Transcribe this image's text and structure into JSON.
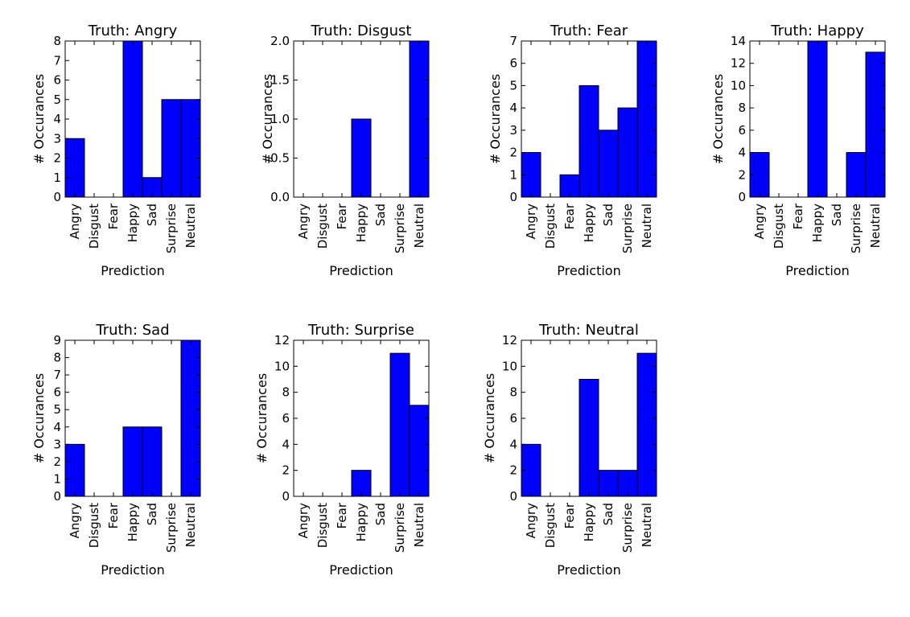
{
  "figure": {
    "bar_color": "#0000ff",
    "edge_color": "#000000",
    "background": "#ffffff"
  },
  "chart_data": [
    {
      "type": "bar",
      "title": "Truth: Angry",
      "xlabel": "Prediction",
      "ylabel": "# Occurances",
      "categories": [
        "Angry",
        "Disgust",
        "Fear",
        "Happy",
        "Sad",
        "Surprise",
        "Neutral"
      ],
      "values": [
        3,
        0,
        0,
        8,
        1,
        5,
        5
      ],
      "ylim": [
        0,
        8
      ],
      "yticks": [
        "0",
        "1",
        "2",
        "3",
        "4",
        "5",
        "6",
        "7",
        "8"
      ]
    },
    {
      "type": "bar",
      "title": "Truth: Disgust",
      "xlabel": "Prediction",
      "ylabel": "# Occurances",
      "categories": [
        "Angry",
        "Disgust",
        "Fear",
        "Happy",
        "Sad",
        "Surprise",
        "Neutral"
      ],
      "values": [
        0,
        0,
        0,
        1,
        0,
        0,
        2
      ],
      "ylim": [
        0,
        2
      ],
      "yticks": [
        "0.0",
        "0.5",
        "1.0",
        "1.5",
        "2.0"
      ]
    },
    {
      "type": "bar",
      "title": "Truth: Fear",
      "xlabel": "Prediction",
      "ylabel": "# Occurances",
      "categories": [
        "Angry",
        "Disgust",
        "Fear",
        "Happy",
        "Sad",
        "Surprise",
        "Neutral"
      ],
      "values": [
        2,
        0,
        1,
        5,
        3,
        4,
        7
      ],
      "ylim": [
        0,
        7
      ],
      "yticks": [
        "0",
        "1",
        "2",
        "3",
        "4",
        "5",
        "6",
        "7"
      ]
    },
    {
      "type": "bar",
      "title": "Truth: Happy",
      "xlabel": "Prediction",
      "ylabel": "# Occurances",
      "categories": [
        "Angry",
        "Disgust",
        "Fear",
        "Happy",
        "Sad",
        "Surprise",
        "Neutral"
      ],
      "values": [
        4,
        0,
        0,
        14,
        0,
        4,
        13
      ],
      "ylim": [
        0,
        14
      ],
      "yticks": [
        "0",
        "2",
        "4",
        "6",
        "8",
        "10",
        "12",
        "14"
      ]
    },
    {
      "type": "bar",
      "title": "Truth: Sad",
      "xlabel": "Prediction",
      "ylabel": "# Occurances",
      "categories": [
        "Angry",
        "Disgust",
        "Fear",
        "Happy",
        "Sad",
        "Surprise",
        "Neutral"
      ],
      "values": [
        3,
        0,
        0,
        4,
        4,
        0,
        9
      ],
      "ylim": [
        0,
        9
      ],
      "yticks": [
        "0",
        "1",
        "2",
        "3",
        "4",
        "5",
        "6",
        "7",
        "8",
        "9"
      ]
    },
    {
      "type": "bar",
      "title": "Truth: Surprise",
      "xlabel": "Prediction",
      "ylabel": "# Occurances",
      "categories": [
        "Angry",
        "Disgust",
        "Fear",
        "Happy",
        "Sad",
        "Surprise",
        "Neutral"
      ],
      "values": [
        0,
        0,
        0,
        2,
        0,
        11,
        7
      ],
      "ylim": [
        0,
        12
      ],
      "yticks": [
        "0",
        "2",
        "4",
        "6",
        "8",
        "10",
        "12"
      ]
    },
    {
      "type": "bar",
      "title": "Truth: Neutral",
      "xlabel": "Prediction",
      "ylabel": "# Occurances",
      "categories": [
        "Angry",
        "Disgust",
        "Fear",
        "Happy",
        "Sad",
        "Surprise",
        "Neutral"
      ],
      "values": [
        4,
        0,
        0,
        9,
        2,
        2,
        11
      ],
      "ylim": [
        0,
        12
      ],
      "yticks": [
        "0",
        "2",
        "4",
        "6",
        "8",
        "10",
        "12"
      ]
    }
  ]
}
